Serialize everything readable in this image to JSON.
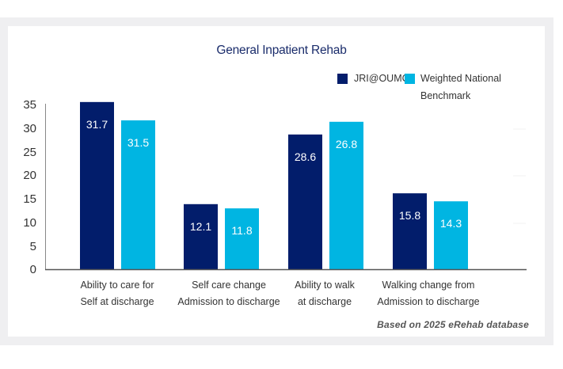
{
  "chart_data": {
    "type": "bar",
    "title": "General Inpatient Rehab",
    "xlabel": "",
    "ylabel": "",
    "ylim": [
      0,
      35
    ],
    "yticks": [
      0,
      5,
      10,
      15,
      20,
      25,
      30,
      35
    ],
    "grid": false,
    "legend_position": "top-right",
    "categories": [
      [
        "Ability to care for",
        "Self at discharge"
      ],
      [
        "Self care change",
        "Admission to discharge"
      ],
      [
        "Ability to walk",
        "at discharge"
      ],
      [
        "Walking change from",
        "Admission to discharge"
      ]
    ],
    "series": [
      {
        "name": "JRI@OUMC",
        "color": "#021d6b",
        "values": [
          31.7,
          12.1,
          28.6,
          15.8
        ],
        "drawn_heights": [
          35.7,
          14.0,
          28.8,
          16.3
        ]
      },
      {
        "name": "Weighted National Benchmark",
        "legend_lines": [
          "Weighted National",
          "Benchmark"
        ],
        "color": "#00b5e2",
        "values": [
          31.5,
          11.8,
          26.8,
          14.3
        ],
        "drawn_heights": [
          31.8,
          13.1,
          31.5,
          14.6
        ]
      }
    ],
    "footnote": "Based on 2025 eRehab database"
  },
  "colors": {
    "title": "#1a2c6b",
    "axis": "#555555",
    "frame": "#efeff1"
  }
}
